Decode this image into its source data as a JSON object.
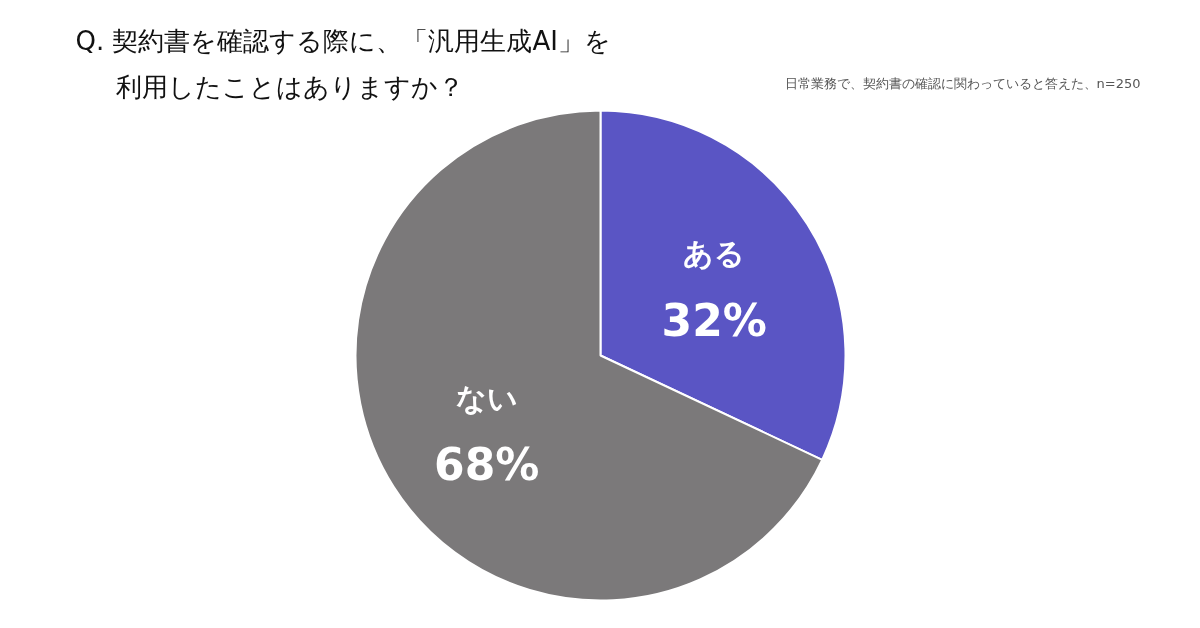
{
  "chart_data": {
    "type": "pie",
    "title": "Q. 契約書を確認する際に、「汎用生成AI」を利用したことはありますか？",
    "subtitle": "日常業務で、契約書の確認に関わっていると答えた、n=250",
    "categories": [
      "ある",
      "ない"
    ],
    "values": [
      32,
      68
    ],
    "colors": [
      "#5a55c4",
      "#7b797a"
    ],
    "value_labels": [
      "32%",
      "68%"
    ]
  }
}
